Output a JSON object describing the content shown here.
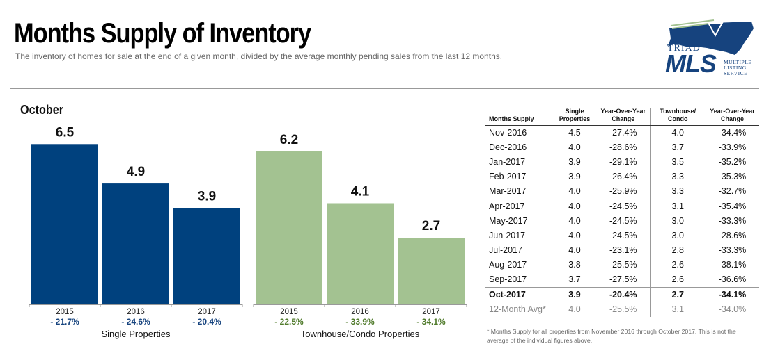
{
  "header": {
    "title": "Months Supply of Inventory",
    "subtitle": "The inventory of homes for sale at the end of a given month, divided by the average monthly pending sales from the last 12 months."
  },
  "logo": {
    "triad": "TRIAD",
    "mls": "MLS",
    "lines": [
      "MULTIPLE",
      "LISTING",
      "SERVICE"
    ]
  },
  "chart_data": {
    "type": "bar",
    "title": "October",
    "ylim": [
      0,
      7.1
    ],
    "groups": [
      {
        "name": "Single Properties",
        "color": "#00417e",
        "categories": [
          "2015",
          "2016",
          "2017"
        ],
        "values": [
          6.5,
          4.9,
          3.9
        ],
        "value_labels": [
          "6.5",
          "4.9",
          "3.9"
        ],
        "changes": [
          "- 21.7%",
          "- 24.6%",
          "- 20.4%"
        ],
        "change_color": "#16437e"
      },
      {
        "name": "Townhouse/Condo Properties",
        "color": "#a3c291",
        "categories": [
          "2015",
          "2016",
          "2017"
        ],
        "values": [
          6.2,
          4.1,
          2.7
        ],
        "value_labels": [
          "6.2",
          "4.1",
          "2.7"
        ],
        "changes": [
          "- 22.5%",
          "- 33.9%",
          "- 34.1%"
        ],
        "change_color": "#4f7a2a"
      }
    ]
  },
  "table": {
    "headers": [
      "Months Supply",
      "Single Properties",
      "Year-Over-Year Change",
      "Townhouse/ Condo",
      "Year-Over-Year Change"
    ],
    "rows": [
      [
        "Nov-2016",
        "4.5",
        "-27.4%",
        "4.0",
        "-34.4%"
      ],
      [
        "Dec-2016",
        "4.0",
        "-28.6%",
        "3.7",
        "-33.9%"
      ],
      [
        "Jan-2017",
        "3.9",
        "-29.1%",
        "3.5",
        "-35.2%"
      ],
      [
        "Feb-2017",
        "3.9",
        "-26.4%",
        "3.3",
        "-35.3%"
      ],
      [
        "Mar-2017",
        "4.0",
        "-25.9%",
        "3.3",
        "-32.7%"
      ],
      [
        "Apr-2017",
        "4.0",
        "-24.5%",
        "3.1",
        "-35.4%"
      ],
      [
        "May-2017",
        "4.0",
        "-24.5%",
        "3.0",
        "-33.3%"
      ],
      [
        "Jun-2017",
        "4.0",
        "-24.5%",
        "3.0",
        "-28.6%"
      ],
      [
        "Jul-2017",
        "4.0",
        "-23.1%",
        "2.8",
        "-33.3%"
      ],
      [
        "Aug-2017",
        "3.8",
        "-25.5%",
        "2.6",
        "-38.1%"
      ],
      [
        "Sep-2017",
        "3.7",
        "-27.5%",
        "2.6",
        "-36.6%"
      ],
      [
        "Oct-2017",
        "3.9",
        "-20.4%",
        "2.7",
        "-34.1%"
      ]
    ],
    "avg_row": [
      "12-Month Avg*",
      "4.0",
      "-25.5%",
      "3.1",
      "-34.0%"
    ],
    "footnote": "* Months Supply for all properties from November 2016 through October 2017. This is not the average of the individual figures above."
  }
}
